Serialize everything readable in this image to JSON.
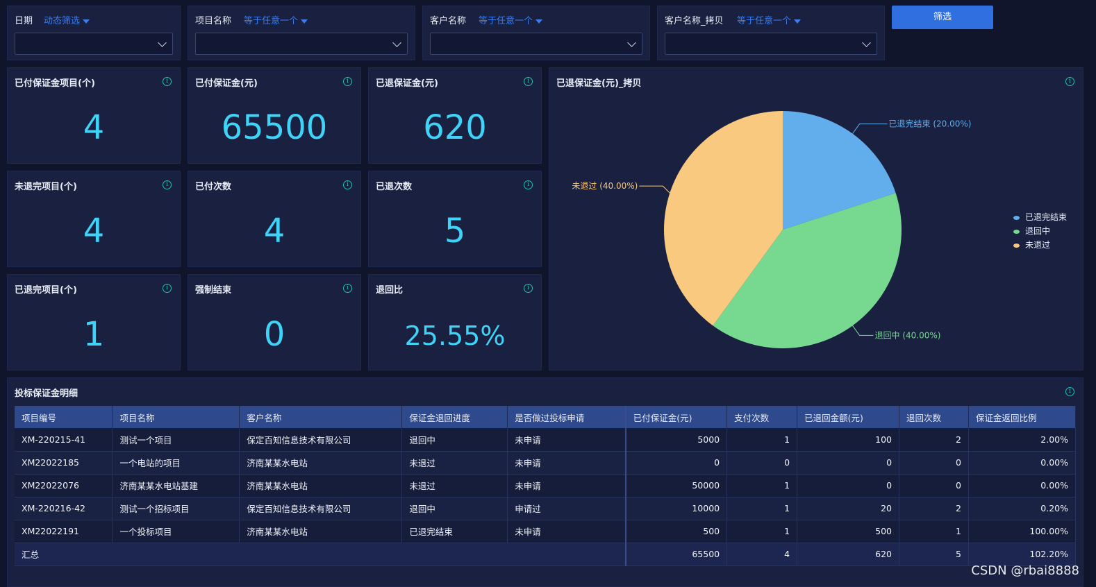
{
  "filters": [
    {
      "label": "日期",
      "mode": "动态筛选"
    },
    {
      "label": "项目名称",
      "mode": "等于任意一个"
    },
    {
      "label": "客户名称",
      "mode": "等于任意一个"
    },
    {
      "label": "客户名称_拷贝",
      "mode": "等于任意一个"
    }
  ],
  "filter_button": "筛选",
  "kpis": [
    {
      "title": "已付保证金项目(个)",
      "value": "4"
    },
    {
      "title": "已付保证金(元)",
      "value": "65500"
    },
    {
      "title": "已退保证金(元)",
      "value": "620"
    },
    {
      "title": "未退完项目(个)",
      "value": "4"
    },
    {
      "title": "已付次数",
      "value": "4"
    },
    {
      "title": "已退次数",
      "value": "5"
    },
    {
      "title": "已退完项目(个)",
      "value": "1"
    },
    {
      "title": "强制结束",
      "value": "0"
    },
    {
      "title": "退回比",
      "value": "25.55%"
    }
  ],
  "pie_title": "已退保证金(元)_拷贝",
  "chart_data": {
    "type": "pie",
    "title": "已退保证金(元)_拷贝",
    "slices": [
      {
        "name": "已退完结束",
        "value": 20.0,
        "label": "已退完结束 (20.00%)",
        "color": "#62aeec"
      },
      {
        "name": "退回中",
        "value": 40.0,
        "label": "退回中 (40.00%)",
        "color": "#77d88f"
      },
      {
        "name": "未退过",
        "value": 40.0,
        "label": "未退过 (40.00%)",
        "color": "#f8c97e"
      }
    ],
    "legend_placement": "right"
  },
  "detail": {
    "title": "投标保证金明细",
    "columns": [
      "项目编号",
      "项目名称",
      "客户名称",
      "保证金退回进度",
      "是否做过投标申请",
      "已付保证金(元)",
      "支付次数",
      "已退回金额(元)",
      "退回次数",
      "保证金返回比例"
    ],
    "rows": [
      [
        "XM-220215-41",
        "测试一个项目",
        "保定百知信息技术有限公司",
        "退回中",
        "未申请",
        "5000",
        "1",
        "100",
        "2",
        "2.00%"
      ],
      [
        "XM22022185",
        "一个电站的项目",
        "济南某某水电站",
        "未退过",
        "未申请",
        "0",
        "0",
        "0",
        "0",
        "0.00%"
      ],
      [
        "XM22022076",
        "济南某某水电站基建",
        "济南某某水电站",
        "未退过",
        "未申请",
        "50000",
        "1",
        "0",
        "0",
        "0.00%"
      ],
      [
        "XM-220216-42",
        "测试一个招标项目",
        "保定百知信息技术有限公司",
        "退回中",
        "申请过",
        "10000",
        "1",
        "20",
        "2",
        "0.20%"
      ],
      [
        "XM22022191",
        "一个投标项目",
        "济南某某水电站",
        "已退完结束",
        "未申请",
        "500",
        "1",
        "500",
        "1",
        "100.00%"
      ]
    ],
    "total": {
      "label": "汇总",
      "values": [
        "65500",
        "4",
        "620",
        "5",
        "102.20%"
      ]
    }
  },
  "watermark": "CSDN @rbai8888"
}
